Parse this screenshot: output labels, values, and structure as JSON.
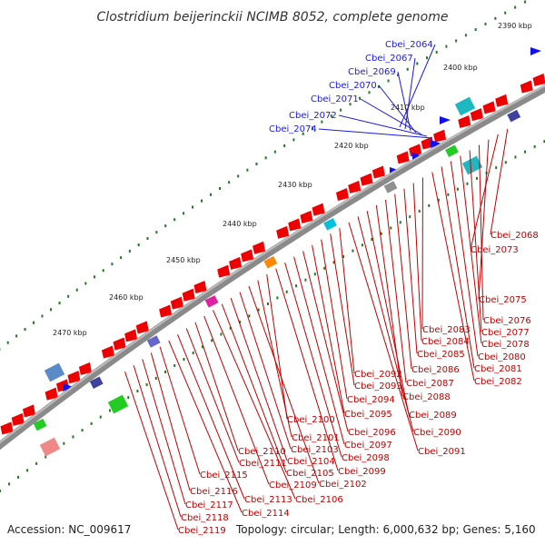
{
  "title": "Clostridium beijerinckii NCIMB 8052, complete genome",
  "footer": {
    "accession": "Accession: NC_009617",
    "summary": "Topology: circular; Length: 6,000,632 bp; Genes: 5,160"
  },
  "colors": {
    "backbone": "#8a8a8a",
    "forward": "#ee0000",
    "reverse": "#1010ee",
    "tick": "#227722",
    "label_top": "#1a1ae0",
    "label_right": "#c00000"
  },
  "kbp_labels": [
    "2390 kbp",
    "2400 kbp",
    "2410 kbp",
    "2420 kbp",
    "2430 kbp",
    "2440 kbp",
    "2450 kbp",
    "2460 kbp",
    "2470 kbp"
  ],
  "top_labels": [
    "Cbei_2064",
    "Cbei_2067",
    "Cbei_2069",
    "Cbei_2070",
    "Cbei_2071",
    "Cbei_2072",
    "Cbei_2074"
  ],
  "right_labels": [
    "Cbei_2068",
    "Cbei_2073",
    "Cbei_2075",
    "Cbei_2076",
    "Cbei_2077",
    "Cbei_2078",
    "Cbei_2080",
    "Cbei_2081",
    "Cbei_2082",
    "Cbei_2083",
    "Cbei_2084",
    "Cbei_2085",
    "Cbei_2086",
    "Cbei_2087",
    "Cbei_2088",
    "Cbei_2089",
    "Cbei_2090",
    "Cbei_2091",
    "Cbei_2092",
    "Cbei_2093",
    "Cbei_2094",
    "Cbei_2095",
    "Cbei_2096",
    "Cbei_2097",
    "Cbei_2098",
    "Cbei_2099",
    "Cbei_2100",
    "Cbei_2101",
    "Cbei_2102",
    "Cbei_2103",
    "Cbei_2104",
    "Cbei_2105",
    "Cbei_2106",
    "Cbei_2109",
    "Cbei_2110",
    "Cbei_2111",
    "Cbei_2113",
    "Cbei_2114",
    "Cbei_2115",
    "Cbei_2116",
    "Cbei_2117",
    "Cbei_2118",
    "Cbei_2119"
  ]
}
